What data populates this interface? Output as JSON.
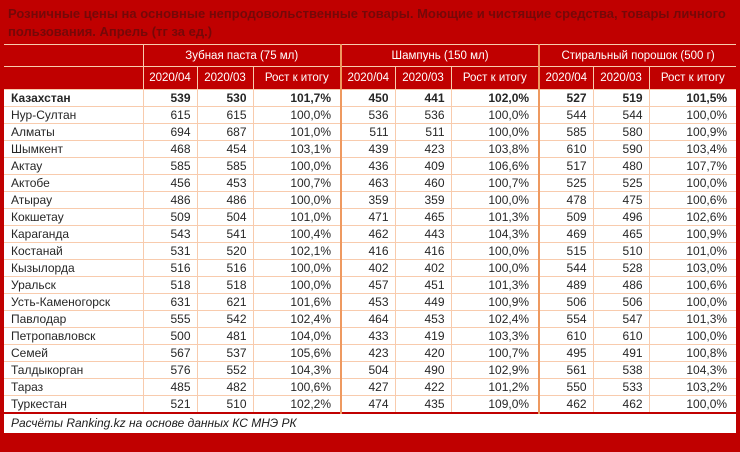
{
  "colors": {
    "background_red": "#c00000",
    "title_text": "#750808",
    "header_text": "#ffffff",
    "body_text": "#262626",
    "cell_border": "#f8cbad",
    "group_separator": "#ee9960"
  },
  "footer_note": "Расчёты Ranking.kz на основе данных КС МНЭ РК",
  "chart_data": {
    "type": "table",
    "title": "Розничные цены на основные непродовольственные товары. Моющие и чистящие средства, товары личного пользования. Апрель (тг за ед.)",
    "region_column_label": "",
    "column_groups": [
      "Зубная паста (75 мл)",
      "Шампунь (150 мл)",
      "Стиральный порошок (500 г)"
    ],
    "sub_columns": [
      "2020/04",
      "2020/03",
      "Рост к итогу"
    ],
    "rows": [
      {
        "region": "Казахстан",
        "bold": true,
        "values": [
          "539",
          "530",
          "101,7%",
          "450",
          "441",
          "102,0%",
          "527",
          "519",
          "101,5%"
        ]
      },
      {
        "region": "Нур-Султан",
        "bold": false,
        "values": [
          "615",
          "615",
          "100,0%",
          "536",
          "536",
          "100,0%",
          "544",
          "544",
          "100,0%"
        ]
      },
      {
        "region": "Алматы",
        "bold": false,
        "values": [
          "694",
          "687",
          "101,0%",
          "511",
          "511",
          "100,0%",
          "585",
          "580",
          "100,9%"
        ]
      },
      {
        "region": "Шымкент",
        "bold": false,
        "values": [
          "468",
          "454",
          "103,1%",
          "439",
          "423",
          "103,8%",
          "610",
          "590",
          "103,4%"
        ]
      },
      {
        "region": "Актау",
        "bold": false,
        "values": [
          "585",
          "585",
          "100,0%",
          "436",
          "409",
          "106,6%",
          "517",
          "480",
          "107,7%"
        ]
      },
      {
        "region": "Актобе",
        "bold": false,
        "values": [
          "456",
          "453",
          "100,7%",
          "463",
          "460",
          "100,7%",
          "525",
          "525",
          "100,0%"
        ]
      },
      {
        "region": "Атырау",
        "bold": false,
        "values": [
          "486",
          "486",
          "100,0%",
          "359",
          "359",
          "100,0%",
          "478",
          "475",
          "100,6%"
        ]
      },
      {
        "region": "Кокшетау",
        "bold": false,
        "values": [
          "509",
          "504",
          "101,0%",
          "471",
          "465",
          "101,3%",
          "509",
          "496",
          "102,6%"
        ]
      },
      {
        "region": "Караганда",
        "bold": false,
        "values": [
          "543",
          "541",
          "100,4%",
          "462",
          "443",
          "104,3%",
          "469",
          "465",
          "100,9%"
        ]
      },
      {
        "region": "Костанай",
        "bold": false,
        "values": [
          "531",
          "520",
          "102,1%",
          "416",
          "416",
          "100,0%",
          "515",
          "510",
          "101,0%"
        ]
      },
      {
        "region": "Кызылорда",
        "bold": false,
        "values": [
          "516",
          "516",
          "100,0%",
          "402",
          "402",
          "100,0%",
          "544",
          "528",
          "103,0%"
        ]
      },
      {
        "region": "Уральск",
        "bold": false,
        "values": [
          "518",
          "518",
          "100,0%",
          "457",
          "451",
          "101,3%",
          "489",
          "486",
          "100,6%"
        ]
      },
      {
        "region": "Усть-Каменогорск",
        "bold": false,
        "values": [
          "631",
          "621",
          "101,6%",
          "453",
          "449",
          "100,9%",
          "506",
          "506",
          "100,0%"
        ]
      },
      {
        "region": "Павлодар",
        "bold": false,
        "values": [
          "555",
          "542",
          "102,4%",
          "464",
          "453",
          "102,4%",
          "554",
          "547",
          "101,3%"
        ]
      },
      {
        "region": "Петропавловск",
        "bold": false,
        "values": [
          "500",
          "481",
          "104,0%",
          "433",
          "419",
          "103,3%",
          "610",
          "610",
          "100,0%"
        ]
      },
      {
        "region": "Семей",
        "bold": false,
        "values": [
          "567",
          "537",
          "105,6%",
          "423",
          "420",
          "100,7%",
          "495",
          "491",
          "100,8%"
        ]
      },
      {
        "region": "Талдыкорган",
        "bold": false,
        "values": [
          "576",
          "552",
          "104,3%",
          "504",
          "490",
          "102,9%",
          "561",
          "538",
          "104,3%"
        ]
      },
      {
        "region": "Тараз",
        "bold": false,
        "values": [
          "485",
          "482",
          "100,6%",
          "427",
          "422",
          "101,2%",
          "550",
          "533",
          "103,2%"
        ]
      },
      {
        "region": "Туркестан",
        "bold": false,
        "values": [
          "521",
          "510",
          "102,2%",
          "474",
          "435",
          "109,0%",
          "462",
          "462",
          "100,0%"
        ]
      }
    ]
  }
}
